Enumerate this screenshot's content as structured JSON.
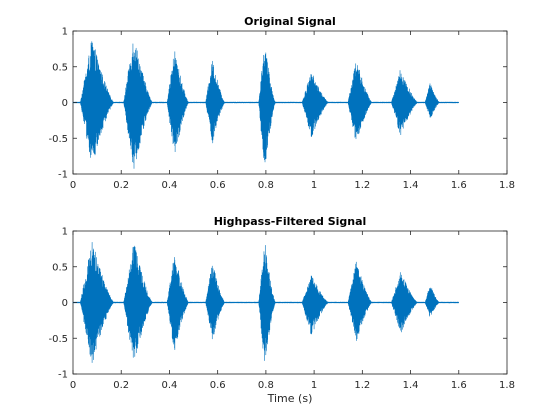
{
  "figure": {
    "background": "#ffffff",
    "line_color": "#0072bd"
  },
  "chart_data": [
    {
      "type": "line",
      "title": "Original Signal",
      "xlabel": "",
      "ylabel": "",
      "xlim": [
        0,
        1.8
      ],
      "ylim": [
        -1,
        1
      ],
      "xticks": [
        "0",
        "0.2",
        "0.4",
        "0.6",
        "0.8",
        "1",
        "1.2",
        "1.4",
        "1.6",
        "1.8"
      ],
      "yticks": [
        "-1",
        "-0.5",
        "0",
        "0.5",
        "1"
      ],
      "grid": false,
      "legend": "none",
      "signal_end": 1.6,
      "bursts": [
        {
          "start": 0.03,
          "end": 0.17,
          "peak": 0.91,
          "trough": -0.91
        },
        {
          "start": 0.21,
          "end": 0.33,
          "peak": 0.97,
          "trough": -0.97
        },
        {
          "start": 0.39,
          "end": 0.48,
          "peak": 0.75,
          "trough": -0.78
        },
        {
          "start": 0.55,
          "end": 0.63,
          "peak": 0.62,
          "trough": -0.6
        },
        {
          "start": 0.77,
          "end": 0.84,
          "peak": 0.86,
          "trough": -0.98
        },
        {
          "start": 0.95,
          "end": 1.06,
          "peak": 0.44,
          "trough": -0.5
        },
        {
          "start": 1.14,
          "end": 1.24,
          "peak": 0.62,
          "trough": -0.59
        },
        {
          "start": 1.32,
          "end": 1.43,
          "peak": 0.48,
          "trough": -0.48
        },
        {
          "start": 1.46,
          "end": 1.52,
          "peak": 0.28,
          "trough": -0.24
        }
      ]
    },
    {
      "type": "line",
      "title": "Highpass-Filtered Signal",
      "xlabel": "Time (s)",
      "ylabel": "",
      "xlim": [
        0,
        1.8
      ],
      "ylim": [
        -1,
        1
      ],
      "xticks": [
        "0",
        "0.2",
        "0.4",
        "0.6",
        "0.8",
        "1",
        "1.2",
        "1.4",
        "1.6",
        "1.8"
      ],
      "yticks": [
        "-1",
        "-0.5",
        "0",
        "0.5",
        "1"
      ],
      "grid": false,
      "legend": "none",
      "signal_end": 1.6,
      "bursts": [
        {
          "start": 0.03,
          "end": 0.17,
          "peak": 0.88,
          "trough": -0.88
        },
        {
          "start": 0.21,
          "end": 0.33,
          "peak": 0.88,
          "trough": -0.88
        },
        {
          "start": 0.39,
          "end": 0.48,
          "peak": 0.7,
          "trough": -0.73
        },
        {
          "start": 0.55,
          "end": 0.63,
          "peak": 0.58,
          "trough": -0.55
        },
        {
          "start": 0.77,
          "end": 0.84,
          "peak": 0.88,
          "trough": -0.9
        },
        {
          "start": 0.95,
          "end": 1.06,
          "peak": 0.4,
          "trough": -0.47
        },
        {
          "start": 1.14,
          "end": 1.24,
          "peak": 0.58,
          "trough": -0.55
        },
        {
          "start": 1.32,
          "end": 1.43,
          "peak": 0.44,
          "trough": -0.44
        },
        {
          "start": 1.46,
          "end": 1.52,
          "peak": 0.26,
          "trough": -0.22
        }
      ]
    }
  ]
}
